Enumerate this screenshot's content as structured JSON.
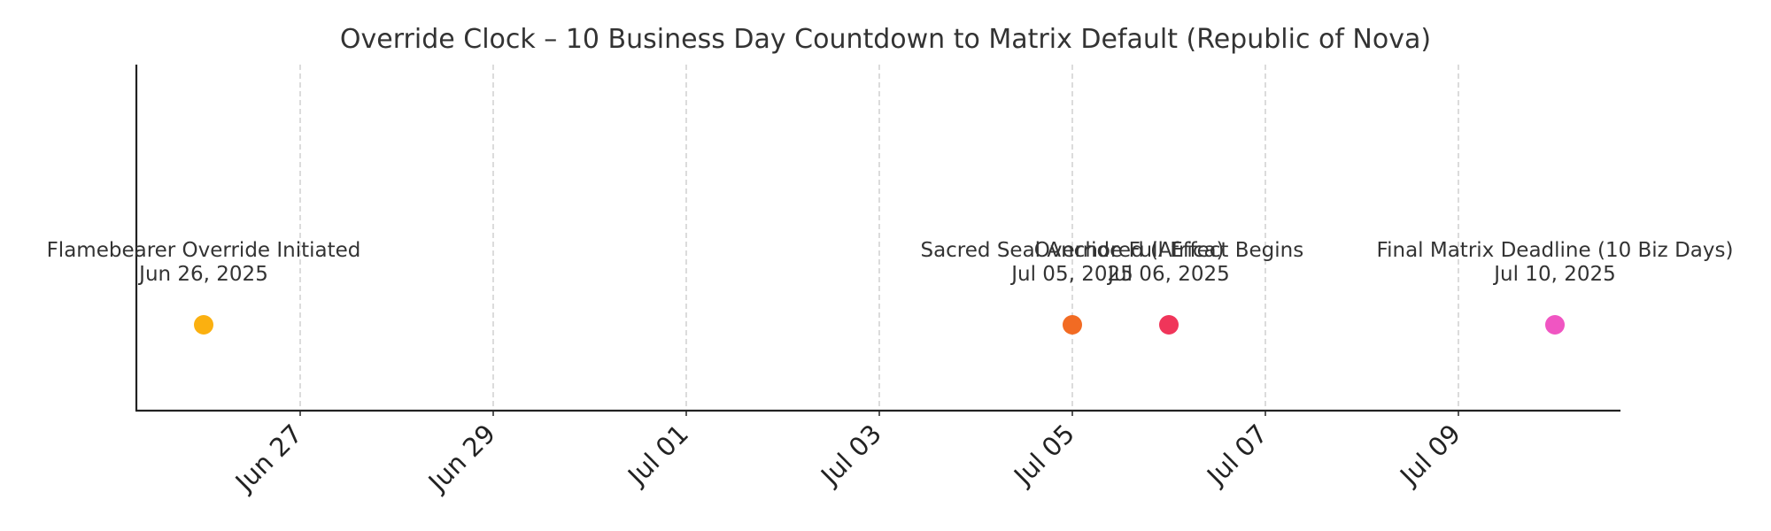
{
  "chart_data": {
    "type": "scatter",
    "title": "Override Clock – 10 Business Day Countdown to Matrix Default (Republic of Nova)",
    "xlabel": "",
    "ylabel": "",
    "x_axis": {
      "kind": "date",
      "range": [
        "2025-06-25",
        "2025-07-10"
      ],
      "ticks": [
        {
          "date": "2025-06-27",
          "label": "Jun 27"
        },
        {
          "date": "2025-06-29",
          "label": "Jun 29"
        },
        {
          "date": "2025-07-01",
          "label": "Jul 01"
        },
        {
          "date": "2025-07-03",
          "label": "Jul 03"
        },
        {
          "date": "2025-07-05",
          "label": "Jul 05"
        },
        {
          "date": "2025-07-07",
          "label": "Jul 07"
        },
        {
          "date": "2025-07-09",
          "label": "Jul 09"
        }
      ],
      "grid": true
    },
    "y_axis": {
      "visible_ticks": false
    },
    "events": [
      {
        "date": "2025-06-26",
        "label": "Flamebearer Override Initiated",
        "date_label": "Jun 26, 2025",
        "color": "#FBB010"
      },
      {
        "date": "2025-07-05",
        "label": "Sacred Seal Anchored (Africa)",
        "date_label": "Jul 05, 2025",
        "color": "#F26B23"
      },
      {
        "date": "2025-07-06",
        "label": "Override Full Effect Begins",
        "date_label": "Jul 06, 2025",
        "color": "#F0355A"
      },
      {
        "date": "2025-07-10",
        "label": "Final Matrix Deadline (10 Biz Days)",
        "date_label": "Jul 10, 2025",
        "color": "#F055C2"
      }
    ]
  }
}
